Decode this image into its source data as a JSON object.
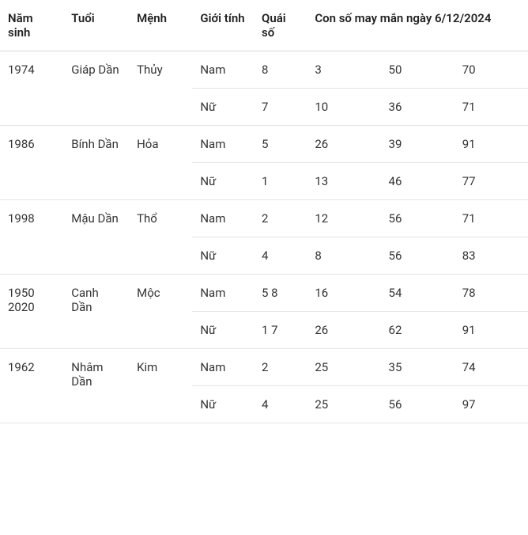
{
  "colors": {
    "background": "#ffffff",
    "text": "#333333",
    "header_text": "#222222",
    "border": "#e5e5e5",
    "header_border": "#d8d8d8"
  },
  "typography": {
    "font_family": "-apple-system, BlinkMacSystemFont, Segoe UI, Roboto, Arial, sans-serif",
    "font_size": 15,
    "header_weight": 600
  },
  "headers": {
    "nam_sinh": "Năm sinh",
    "tuoi": "Tuổi",
    "menh": "Mệnh",
    "gioi_tinh": "Giới tính",
    "quai_so": "Quái số",
    "con_so": "Con số may mắn ngày 6/12/2024"
  },
  "groups": [
    {
      "nam_sinh": "1974",
      "tuoi": "Giáp Dần",
      "menh": "Thủy",
      "rows": [
        {
          "gioi_tinh": "Nam",
          "quai_so": "8",
          "n1": "3",
          "n2": "50",
          "n3": "70"
        },
        {
          "gioi_tinh": "Nữ",
          "quai_so": "7",
          "n1": "10",
          "n2": "36",
          "n3": "71"
        }
      ]
    },
    {
      "nam_sinh": "1986",
      "tuoi": "Bính Dần",
      "menh": "Hỏa",
      "rows": [
        {
          "gioi_tinh": "Nam",
          "quai_so": "5",
          "n1": "26",
          "n2": "39",
          "n3": "91"
        },
        {
          "gioi_tinh": "Nữ",
          "quai_so": "1",
          "n1": "13",
          "n2": "46",
          "n3": "77"
        }
      ]
    },
    {
      "nam_sinh": "1998",
      "tuoi": "Mậu Dần",
      "menh": "Thổ",
      "rows": [
        {
          "gioi_tinh": "Nam",
          "quai_so": "2",
          "n1": "12",
          "n2": "56",
          "n3": "71"
        },
        {
          "gioi_tinh": "Nữ",
          "quai_so": "4",
          "n1": "8",
          "n2": "56",
          "n3": "83"
        }
      ]
    },
    {
      "nam_sinh": "1950\n2020",
      "tuoi": "Canh Dần",
      "menh": "Mộc",
      "rows": [
        {
          "gioi_tinh": "Nam",
          "quai_so": "5 8",
          "n1": "16",
          "n2": "54",
          "n3": "78"
        },
        {
          "gioi_tinh": "Nữ",
          "quai_so": "1 7",
          "n1": "26",
          "n2": "62",
          "n3": "91"
        }
      ]
    },
    {
      "nam_sinh": "1962",
      "tuoi": "Nhâm Dần",
      "menh": "Kim",
      "rows": [
        {
          "gioi_tinh": "Nam",
          "quai_so": "2",
          "n1": "25",
          "n2": "35",
          "n3": "74"
        },
        {
          "gioi_tinh": "Nữ",
          "quai_so": "4",
          "n1": "25",
          "n2": "56",
          "n3": "97"
        }
      ]
    }
  ]
}
